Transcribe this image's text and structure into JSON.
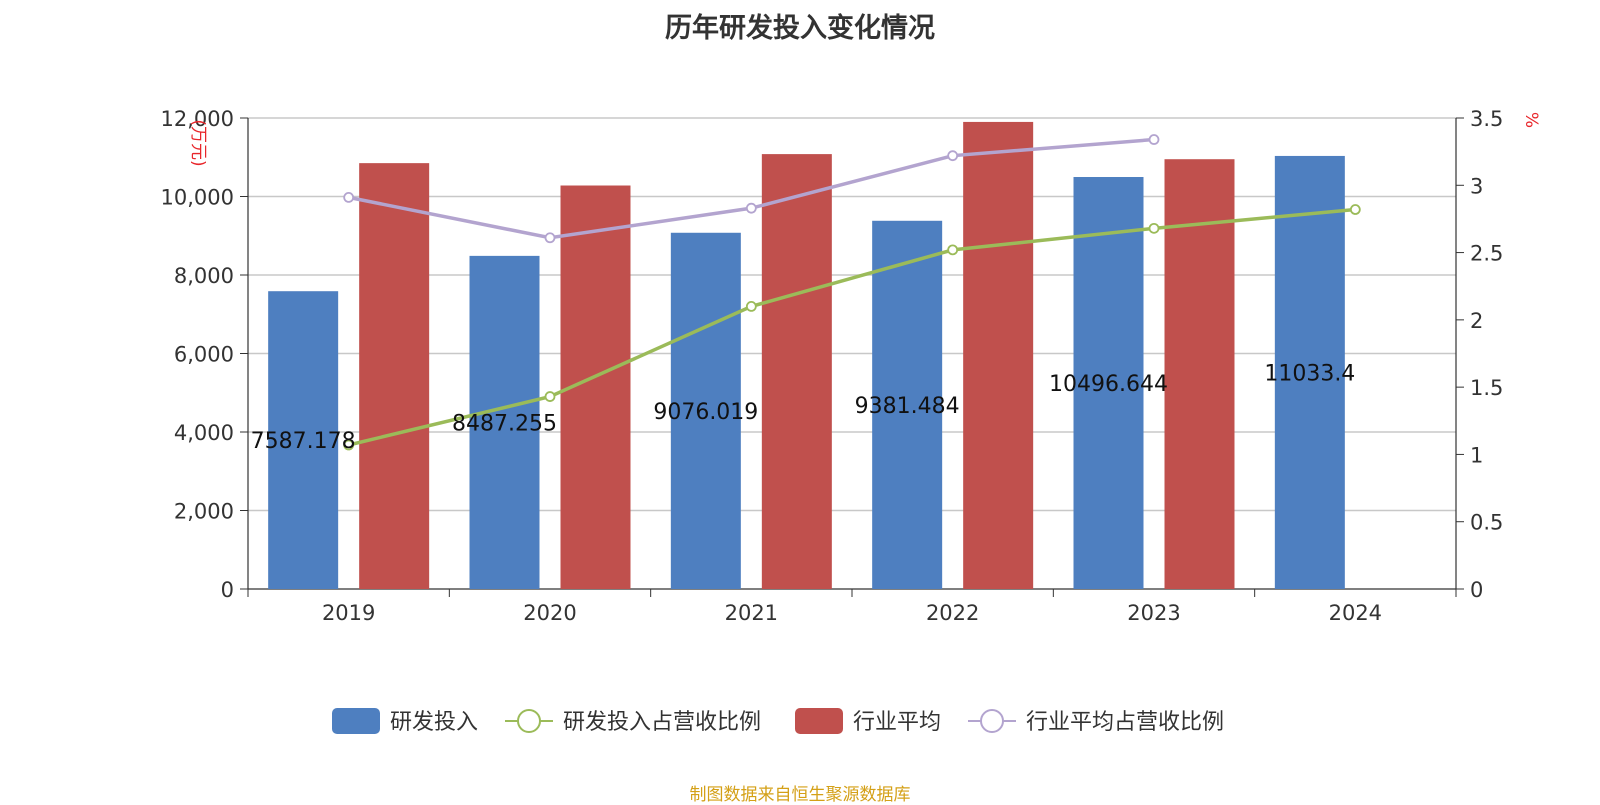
{
  "title": "历年研发投入变化情况",
  "source": "制图数据来自恒生聚源数据库",
  "colors": {
    "rd": "#4e7fc0",
    "rd_ratio": "#9bbb59",
    "industry": "#c0504d",
    "industry_ratio": "#b3a4cf",
    "grid": "#c8c8c8",
    "axis": "#333333",
    "unit": "#e8262b"
  },
  "chart_data": {
    "type": "bar",
    "title": "历年研发投入变化情况",
    "categories": [
      "2019",
      "2020",
      "2021",
      "2022",
      "2023",
      "2024"
    ],
    "y_left": {
      "unit": "万元",
      "ylim": [
        0,
        12000
      ],
      "ticks": [
        "0",
        "2,000",
        "4,000",
        "6,000",
        "8,000",
        "10,000",
        "12,000"
      ]
    },
    "y_right": {
      "unit": "%",
      "ylim": [
        0,
        3.5
      ],
      "ticks": [
        "0",
        "0.5",
        "1",
        "1.5",
        "2",
        "2.5",
        "3",
        "3.5"
      ]
    },
    "grid": true,
    "legend_position": "bottom",
    "series": [
      {
        "name": "研发投入",
        "type": "bar",
        "axis": "left",
        "values": [
          7587.178,
          8487.255,
          9076.019,
          9381.484,
          10496.644,
          11033.4
        ],
        "labels": [
          "7587.178",
          "8487.255",
          "9076.019",
          "9381.484",
          "10496.644",
          "11033.4"
        ]
      },
      {
        "name": "研发投入占营收比例",
        "type": "line",
        "axis": "right",
        "values": [
          1.07,
          1.43,
          2.1,
          2.52,
          2.68,
          2.82
        ]
      },
      {
        "name": "行业平均",
        "type": "bar",
        "axis": "left",
        "values": [
          10850,
          10280,
          11080,
          11900,
          10950,
          null
        ]
      },
      {
        "name": "行业平均占营收比例",
        "type": "line",
        "axis": "right",
        "values": [
          2.91,
          2.61,
          2.83,
          3.22,
          3.34,
          null
        ]
      }
    ]
  }
}
